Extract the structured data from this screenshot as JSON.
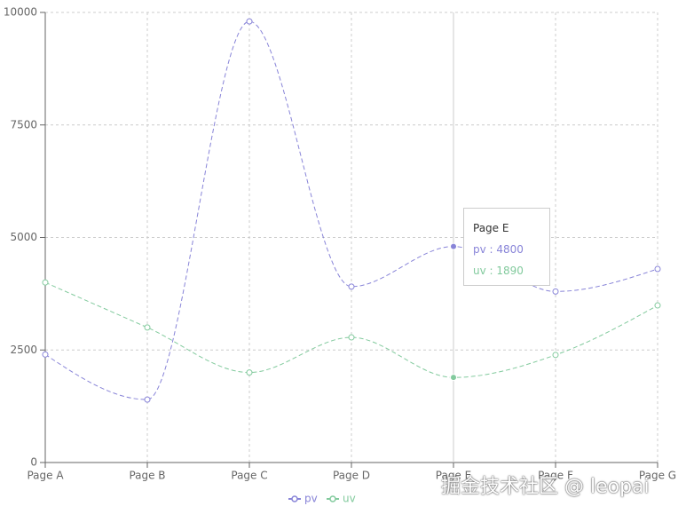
{
  "chart_data": {
    "type": "line",
    "categories": [
      "Page A",
      "Page B",
      "Page C",
      "Page D",
      "Page E",
      "Page F",
      "Page G"
    ],
    "series": [
      {
        "name": "pv",
        "color": "#8884d8",
        "values": [
          2400,
          1398,
          9800,
          3908,
          4800,
          3800,
          4300
        ]
      },
      {
        "name": "uv",
        "color": "#82ca9d",
        "values": [
          4000,
          3000,
          2000,
          2780,
          1890,
          2390,
          3490
        ]
      }
    ],
    "ylim": [
      0,
      10000
    ],
    "yticks": [
      0,
      2500,
      5000,
      7500,
      10000
    ],
    "grid": true,
    "active_index": 4,
    "tooltip_separator": " : ",
    "legend": "bottom",
    "watermark": "掘金技术社区 @ leopai"
  }
}
